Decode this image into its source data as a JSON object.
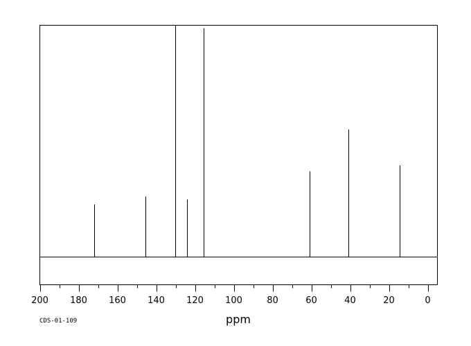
{
  "chart_data": {
    "type": "line",
    "title": "",
    "xlabel": "ppm",
    "ylabel": "",
    "xlim": [
      200,
      -5
    ],
    "ylim": [
      -12,
      100
    ],
    "x_ticks": [
      200,
      180,
      160,
      140,
      120,
      100,
      80,
      60,
      40,
      20,
      0
    ],
    "x_tick_labels": [
      "200",
      "180",
      "160",
      "140",
      "120",
      "100",
      "80",
      "60",
      "40",
      "20",
      "0"
    ],
    "x_minor_step": 10,
    "grid": false,
    "legend": "none",
    "series": [
      {
        "peaks": [
          {
            "ppm": 172.0,
            "intensity": 22.7
          },
          {
            "ppm": 145.5,
            "intensity": 26.1
          },
          {
            "ppm": 130.2,
            "intensity": 100.0
          },
          {
            "ppm": 124.2,
            "intensity": 24.8
          },
          {
            "ppm": 115.5,
            "intensity": 98.7
          },
          {
            "ppm": 61.0,
            "intensity": 37.0
          },
          {
            "ppm": 40.8,
            "intensity": 55.0
          },
          {
            "ppm": 14.3,
            "intensity": 39.5
          }
        ]
      }
    ],
    "annotation": "CDS-01-109"
  },
  "colors": {
    "line": "#000000",
    "background": "#ffffff"
  }
}
